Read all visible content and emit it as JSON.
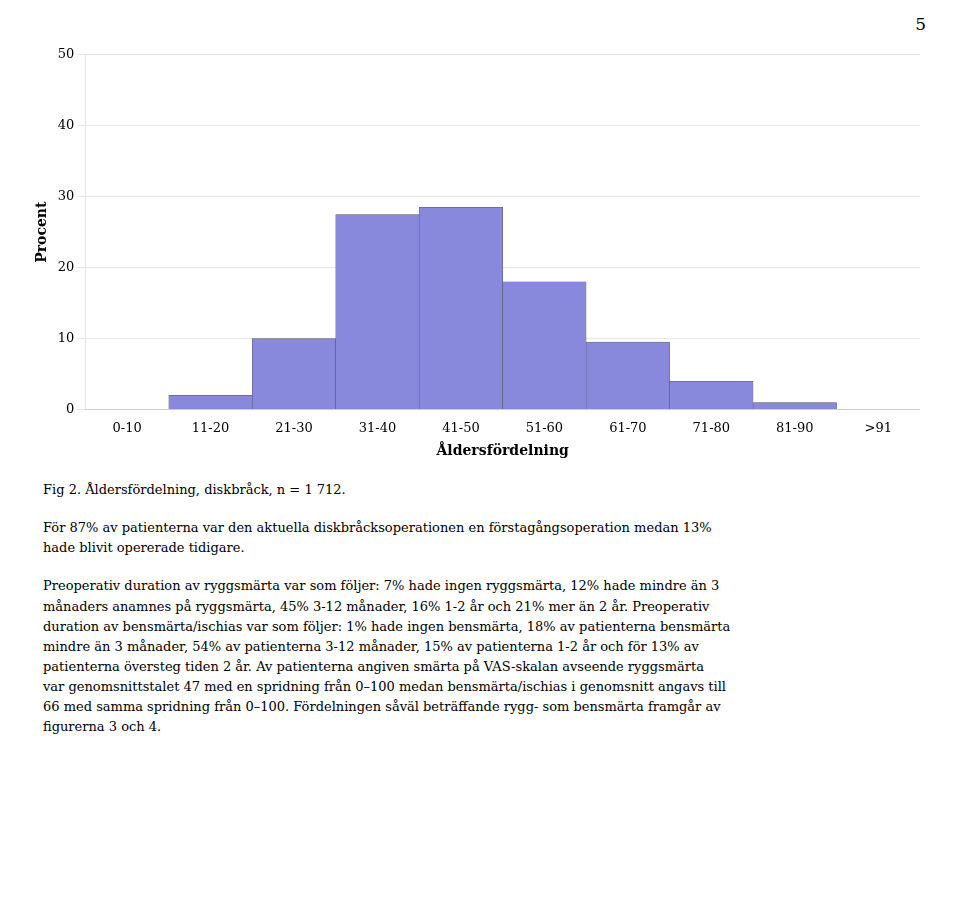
{
  "chart_data": {
    "type": "bar",
    "categories": [
      "0-10",
      "11-20",
      "21-30",
      "31-40",
      "41-50",
      "51-60",
      "61-70",
      "71-80",
      "81-90",
      ">91"
    ],
    "values": [
      0,
      2,
      10,
      27.5,
      28.5,
      18,
      9.5,
      4,
      1,
      0
    ],
    "color": "#8888dd",
    "xlabel": "Åldersfördelning",
    "ylabel": "Procent",
    "ylim": [
      0,
      50
    ],
    "yticks": [
      0,
      10,
      20,
      30,
      40,
      50
    ],
    "grid": true,
    "annotations": [
      "5",
      "Fig 2. Åldersfördelning, diskbråck, n = 1 712.",
      "För 87% av patienterna var den aktuella diskbråcksoperationen en förstagångsoperation medan 13%\nhade blivit opererade tidigare.",
      "Preoperativ duration av ryggsmärta var som följer: 7% hade ingen ryggsmärta, 12% hade mindre än 3\nmånaders anamnes på ryggsmärta, 45% 3-12 månader, 16% 1-2 år och 21% mer än 2 år. Preoperativ\nduration av bensmärta/ischias var som följer: 1% hade ingen bensmärta, 18% av patienterna bensmärta\nmindre än 3 månader, 54% av patienterna 3-12 månader, 15% av patienterna 1-2 år och för 13% av\npatienterna översteg tiden 2 år. Av patienterna angiven smärta på VAS-skalan avseende ryggsmärta\nvar genomsnittstalet 47 med en spridning från 0–100 medan bensmärta/ischias i genomsnitt angavs till\n66 med samma spridning från 0–100. Fördelningen såväl beträffande rygg- som bensmärta framgår av\nfigurerna 3 och 4."
    ]
  }
}
